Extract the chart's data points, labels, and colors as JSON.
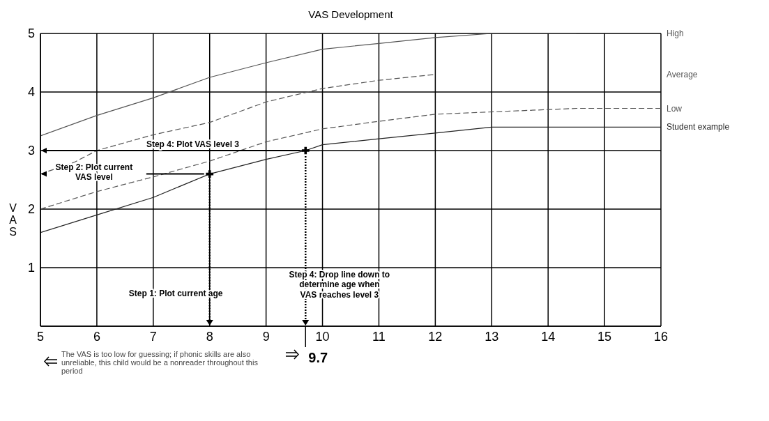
{
  "chart_data": {
    "type": "line",
    "title": "VAS Development",
    "ylabel": "VAS",
    "xlim": [
      5,
      16
    ],
    "xticks": [
      5,
      6,
      7,
      8,
      9,
      10,
      11,
      12,
      13,
      14,
      15,
      16
    ],
    "ylim": [
      0,
      5
    ],
    "yticks": [
      {
        "value": 0,
        "label": null
      },
      1,
      2,
      3,
      4,
      5
    ],
    "grid": true,
    "legend": false,
    "marker": "none",
    "series": [
      {
        "name": "High",
        "color": "#555555",
        "line_style": "solid",
        "x": [
          5,
          6,
          7,
          8,
          9,
          10,
          11,
          12,
          13,
          14.5
        ],
        "values": [
          3.25,
          3.6,
          3.9,
          4.25,
          4.5,
          4.73,
          4.83,
          4.93,
          5.0,
          5.0
        ]
      },
      {
        "name": "Average",
        "color": "#555555",
        "line_style": "dashed",
        "x": [
          5,
          5.6,
          6,
          7,
          8,
          9,
          10,
          11,
          12
        ],
        "values": [
          2.6,
          2.8,
          3.0,
          3.27,
          3.48,
          3.83,
          4.06,
          4.2,
          4.3
        ]
      },
      {
        "name": "Low",
        "color": "#555555",
        "line_style": "dashed",
        "x": [
          5,
          6,
          7,
          8,
          9,
          10,
          11,
          12,
          14.5,
          16
        ],
        "values": [
          2.0,
          2.3,
          2.55,
          2.82,
          3.15,
          3.37,
          3.5,
          3.62,
          3.72,
          3.72
        ]
      },
      {
        "name": "Student example",
        "color": "#222222",
        "line_style": "solid",
        "x": [
          5,
          6,
          7,
          8,
          9,
          9.7,
          10,
          11,
          12,
          13,
          16
        ],
        "values": [
          1.6,
          1.9,
          2.2,
          2.6,
          2.85,
          3.0,
          3.1,
          3.2,
          3.3,
          3.4,
          3.4
        ]
      },
      {
        "type": "scatter",
        "marker": "cross",
        "color": "#000000",
        "x": [
          8,
          9.7
        ],
        "values": [
          2.6,
          3.0
        ]
      }
    ],
    "annotations": [
      "Step 4: Plot VAS level 3",
      "Step 2: Plot current\nVAS level",
      "Step 1: Plot current age",
      "Step 4: Drop line down to\ndetermine age when\nVAS reaches level 3",
      "9.7",
      "The VAS is too low for guessing; if phonic skills are also unreliable, this child would be a nonreader throughout this period"
    ]
  }
}
